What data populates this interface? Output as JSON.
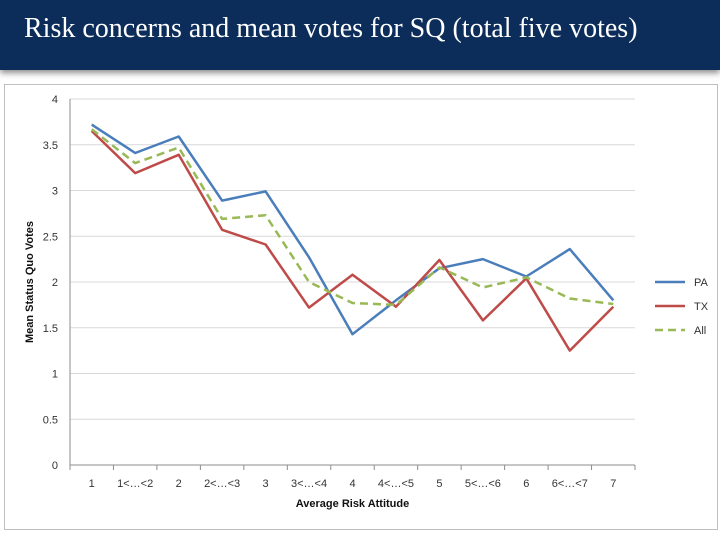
{
  "slide": {
    "title": "Risk concerns and mean votes for SQ (total five votes)"
  },
  "chart_data": {
    "type": "line",
    "title": "",
    "xlabel": "Average Risk Attitude",
    "ylabel": "Mean Status Quo Votes",
    "categories": [
      "1",
      "1<…<2",
      "2",
      "2<…<3",
      "3",
      "3<…<4",
      "4",
      "4<…<5",
      "5",
      "5<…<6",
      "6",
      "6<…<7",
      "7"
    ],
    "ylim": [
      0,
      4
    ],
    "yticks": [
      "0",
      "0.5",
      "1",
      "1.5",
      "2",
      "2.5",
      "3",
      "3.5",
      "4"
    ],
    "grid": true,
    "legend_position": "right",
    "series": [
      {
        "name": "PA",
        "color": "#4a7ebb",
        "dash": "solid",
        "values": [
          3.72,
          3.41,
          3.59,
          2.89,
          2.99,
          2.27,
          1.43,
          1.8,
          2.15,
          2.25,
          2.06,
          2.36,
          1.8
        ]
      },
      {
        "name": "TX",
        "color": "#be4b48",
        "dash": "solid",
        "values": [
          3.65,
          3.19,
          3.39,
          2.57,
          2.41,
          1.72,
          2.08,
          1.73,
          2.24,
          1.58,
          2.04,
          1.25,
          1.73
        ]
      },
      {
        "name": "All",
        "color": "#98b954",
        "dash": "dashed",
        "values": [
          3.67,
          3.3,
          3.47,
          2.69,
          2.73,
          2.0,
          1.77,
          1.75,
          2.16,
          1.94,
          2.05,
          1.82,
          1.76
        ]
      }
    ]
  }
}
